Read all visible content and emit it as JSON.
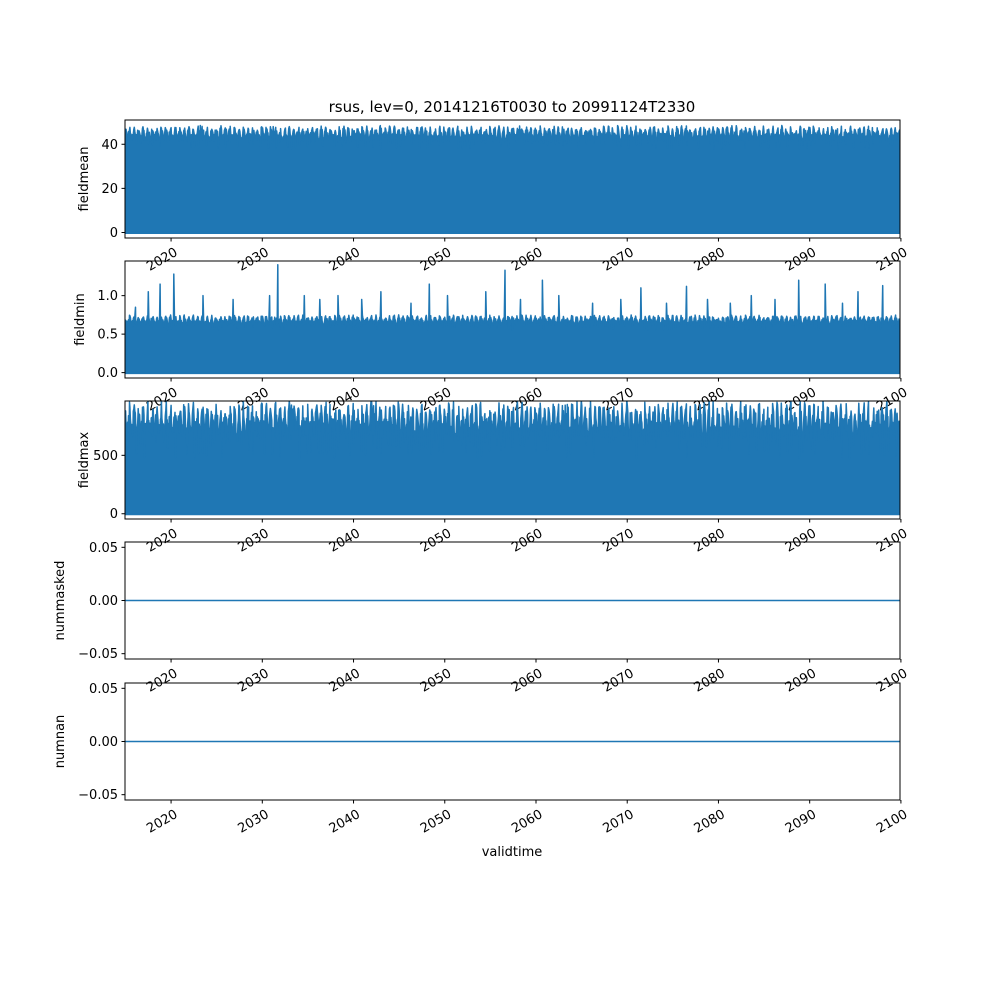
{
  "title": "rsus, lev=0, 20141216T0030 to 20991124T2330",
  "xlabel": "validtime",
  "series_color": "#1f77b4",
  "chart_data": [
    {
      "type": "line",
      "ylabel": "fieldmean",
      "xlim": [
        2014.95,
        2099.9
      ],
      "ylim": [
        -2.5,
        51
      ],
      "x_ticks": [
        2020,
        2030,
        2040,
        2050,
        2060,
        2070,
        2080,
        2090,
        2100
      ],
      "x_tick_labels": [
        "2020",
        "2030",
        "2040",
        "2050",
        "2060",
        "2070",
        "2080",
        "2090",
        "2100"
      ],
      "y_ticks": [
        0,
        20,
        40
      ],
      "y_tick_labels": [
        "0",
        "20",
        "40"
      ],
      "x_range": [
        2014.96,
        2099.9
      ],
      "seasonal_min": 0,
      "seasonal_high": 47,
      "seasonal_trough": 38,
      "peaks": [
        [
          2023.2,
          48.5
        ],
        [
          2031.2,
          48
        ],
        [
          2058.2,
          48.3
        ]
      ]
    },
    {
      "type": "line",
      "ylabel": "fieldmin",
      "xlim": [
        2014.95,
        2099.9
      ],
      "ylim": [
        -0.07,
        1.45
      ],
      "x_ticks": [
        2020,
        2030,
        2040,
        2050,
        2060,
        2070,
        2080,
        2090,
        2100
      ],
      "x_tick_labels": [
        "2020",
        "2030",
        "2040",
        "2050",
        "2060",
        "2070",
        "2080",
        "2090",
        "2100"
      ],
      "y_ticks": [
        0.0,
        0.5,
        1.0
      ],
      "y_tick_labels": [
        "0.0",
        "0.5",
        "1.0"
      ],
      "x_range": [
        2014.96,
        2099.9
      ],
      "seasonal_min": 0,
      "seasonal_high": 0.72,
      "seasonal_trough": 0.55,
      "peaks": [
        [
          2016.1,
          0.85
        ],
        [
          2017.5,
          1.05
        ],
        [
          2018.8,
          1.15
        ],
        [
          2020.3,
          1.28
        ],
        [
          2023.5,
          1.0
        ],
        [
          2026.8,
          0.95
        ],
        [
          2030.8,
          1.0
        ],
        [
          2031.7,
          1.4
        ],
        [
          2034.6,
          1.0
        ],
        [
          2036.3,
          0.95
        ],
        [
          2038.3,
          1.0
        ],
        [
          2040.9,
          0.95
        ],
        [
          2043.0,
          1.05
        ],
        [
          2046.3,
          0.9
        ],
        [
          2048.3,
          1.15
        ],
        [
          2050.3,
          1.0
        ],
        [
          2054.5,
          1.05
        ],
        [
          2056.6,
          1.33
        ],
        [
          2058.3,
          0.95
        ],
        [
          2060.7,
          1.2
        ],
        [
          2062.5,
          1.0
        ],
        [
          2066.2,
          0.9
        ],
        [
          2069.3,
          0.95
        ],
        [
          2071.5,
          1.1
        ],
        [
          2074.3,
          0.9
        ],
        [
          2076.5,
          1.12
        ],
        [
          2078.8,
          0.95
        ],
        [
          2081.3,
          0.9
        ],
        [
          2083.6,
          1.0
        ],
        [
          2086.2,
          0.95
        ],
        [
          2088.8,
          1.2
        ],
        [
          2091.7,
          1.15
        ],
        [
          2093.6,
          0.9
        ],
        [
          2095.3,
          1.05
        ],
        [
          2098.0,
          1.13
        ]
      ]
    },
    {
      "type": "line",
      "ylabel": "fieldmax",
      "xlim": [
        2014.95,
        2099.9
      ],
      "ylim": [
        -45,
        965
      ],
      "x_ticks": [
        2020,
        2030,
        2040,
        2050,
        2060,
        2070,
        2080,
        2090,
        2100
      ],
      "x_tick_labels": [
        "2020",
        "2030",
        "2040",
        "2050",
        "2060",
        "2070",
        "2080",
        "2090",
        "2100"
      ],
      "y_ticks": [
        0,
        500
      ],
      "y_tick_labels": [
        "0",
        "500"
      ],
      "x_range": [
        2014.96,
        2099.9
      ],
      "seasonal_min": 0,
      "seasonal_high": 900,
      "seasonal_trough": 470,
      "peaks": [
        [
          2033.2,
          930
        ],
        [
          2042.2,
          925
        ],
        [
          2063.2,
          930
        ]
      ]
    },
    {
      "type": "line",
      "ylabel": "nummasked",
      "xlim": [
        2014.95,
        2099.9
      ],
      "ylim": [
        -0.055,
        0.055
      ],
      "x_ticks": [
        2020,
        2030,
        2040,
        2050,
        2060,
        2070,
        2080,
        2090,
        2100
      ],
      "x_tick_labels": [
        "2020",
        "2030",
        "2040",
        "2050",
        "2060",
        "2070",
        "2080",
        "2090",
        "2100"
      ],
      "y_ticks": [
        -0.05,
        0.0,
        0.05
      ],
      "y_tick_labels": [
        "−0.05",
        "0.00",
        "0.05"
      ],
      "x": [
        2014.96,
        2099.9
      ],
      "y": [
        0,
        0
      ]
    },
    {
      "type": "line",
      "ylabel": "numnan",
      "xlim": [
        2014.95,
        2099.9
      ],
      "ylim": [
        -0.055,
        0.055
      ],
      "x_ticks": [
        2020,
        2030,
        2040,
        2050,
        2060,
        2070,
        2080,
        2090,
        2100
      ],
      "x_tick_labels": [
        "2020",
        "2030",
        "2040",
        "2050",
        "2060",
        "2070",
        "2080",
        "2090",
        "2100"
      ],
      "y_ticks": [
        -0.05,
        0.0,
        0.05
      ],
      "y_tick_labels": [
        "−0.05",
        "0.00",
        "0.05"
      ],
      "x": [
        2014.96,
        2099.9
      ],
      "y": [
        0,
        0
      ]
    }
  ]
}
